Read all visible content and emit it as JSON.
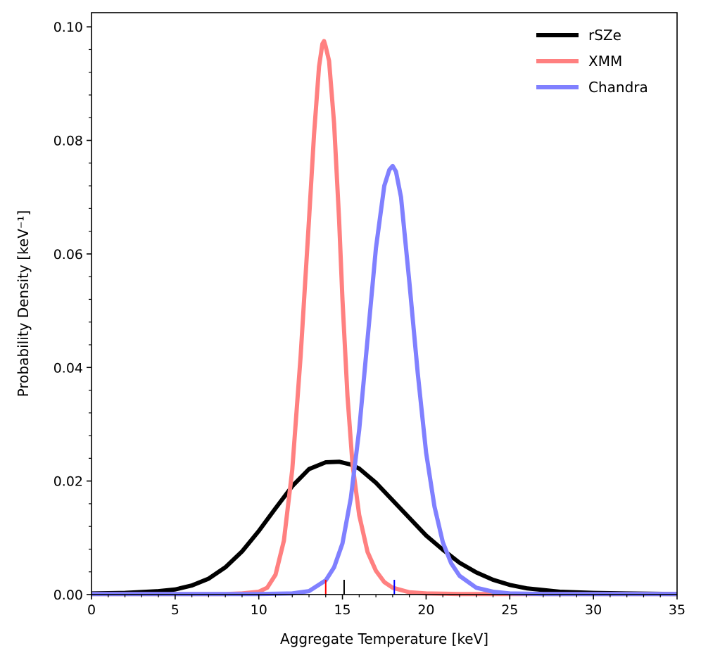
{
  "chart_data": {
    "type": "line",
    "title": "",
    "xlabel": "Aggregate Temperature [keV]",
    "ylabel": "Probability Density [keV⁻¹]",
    "xlim": [
      0,
      35
    ],
    "ylim": [
      0,
      0.1025
    ],
    "xticks": [
      0,
      5,
      10,
      15,
      20,
      25,
      30,
      35
    ],
    "xtick_labels": [
      "0",
      "5",
      "10",
      "15",
      "20",
      "25",
      "30",
      "35"
    ],
    "xminor_step": 1,
    "yticks": [
      0,
      0.02,
      0.04,
      0.06,
      0.08,
      0.1
    ],
    "ytick_labels": [
      "0.00",
      "0.02",
      "0.04",
      "0.06",
      "0.08",
      "0.10"
    ],
    "yminor_step": 0.004,
    "grid": false,
    "legend_position": "top-right",
    "series": [
      {
        "name": "rSZe",
        "color": "#000000",
        "opacity": 1.0,
        "marker_x": 15.1,
        "x": [
          0,
          2,
          4,
          5,
          6,
          7,
          8,
          9,
          10,
          11,
          12,
          13,
          14,
          14.8,
          15.5,
          16,
          17,
          18,
          19,
          20,
          21,
          22,
          23,
          24,
          25,
          26,
          28,
          30,
          32,
          35
        ],
        "y": [
          0.0002,
          0.0003,
          0.0006,
          0.0009,
          0.0016,
          0.0028,
          0.0048,
          0.0076,
          0.0112,
          0.0152,
          0.0191,
          0.0221,
          0.0233,
          0.0234,
          0.0229,
          0.0222,
          0.0197,
          0.0166,
          0.0135,
          0.0104,
          0.0079,
          0.0056,
          0.0039,
          0.0026,
          0.0017,
          0.0011,
          0.0005,
          0.0003,
          0.0002,
          0.0001
        ]
      },
      {
        "name": "XMM",
        "color": "#ff8080",
        "opacity": 1.0,
        "marker_x": 14.0,
        "x": [
          0,
          8,
          9,
          10,
          10.5,
          11,
          11.5,
          12,
          12.5,
          13,
          13.3,
          13.6,
          13.8,
          13.9,
          14.0,
          14.2,
          14.5,
          14.8,
          15.0,
          15.3,
          15.6,
          16,
          16.5,
          17,
          17.5,
          18,
          19,
          20,
          22,
          25,
          35
        ],
        "y": [
          0.0001,
          0.0001,
          0.0002,
          0.0005,
          0.0012,
          0.0035,
          0.0095,
          0.022,
          0.042,
          0.066,
          0.081,
          0.093,
          0.097,
          0.0975,
          0.0965,
          0.094,
          0.083,
          0.066,
          0.052,
          0.035,
          0.023,
          0.014,
          0.0075,
          0.0042,
          0.0022,
          0.0012,
          0.0004,
          0.0002,
          0.0001,
          0.0001,
          0.0001
        ]
      },
      {
        "name": "Chandra",
        "color": "#8080ff",
        "opacity": 1.0,
        "marker_x": 18.1,
        "x": [
          0,
          10,
          12,
          13,
          14,
          14.5,
          15,
          15.5,
          16,
          16.5,
          17,
          17.5,
          17.8,
          18.0,
          18.2,
          18.5,
          19,
          19.5,
          20,
          20.5,
          21,
          21.5,
          22,
          23,
          24,
          25,
          27,
          30,
          35
        ],
        "y": [
          0.0001,
          0.0001,
          0.0002,
          0.0006,
          0.0025,
          0.0048,
          0.009,
          0.017,
          0.029,
          0.045,
          0.061,
          0.072,
          0.0748,
          0.0755,
          0.0745,
          0.07,
          0.055,
          0.039,
          0.025,
          0.0155,
          0.0092,
          0.0055,
          0.0033,
          0.0012,
          0.0005,
          0.0002,
          0.0001,
          0.0001,
          0.0001
        ]
      }
    ]
  }
}
